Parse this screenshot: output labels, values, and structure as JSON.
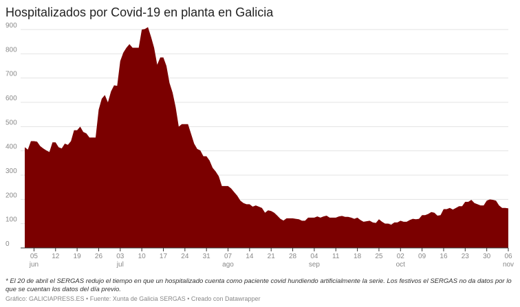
{
  "chart_data": {
    "type": "area",
    "title": "Hospitalizados por Covid-19 en planta en Galicia",
    "footnote": "* El 20 de abril el SERGAS redujo el tiempo en que un hospitalizado cuenta como paciente covid hundiendo artificialmente la serie. Los festivos el SERGAS no da datos por lo que se cuentan los datos del día previo.",
    "source": "Gráfico: GALICIAPRESS.ES • Fuente: Xunta de Galicia SERGAS • Creado con Datawrapper",
    "color": "#7b0000",
    "categories": [
      null,
      null,
      null,
      "05 jun",
      null,
      null,
      null,
      null,
      null,
      null,
      "12",
      null,
      null,
      null,
      null,
      null,
      null,
      "19",
      null,
      null,
      null,
      null,
      null,
      null,
      "26",
      null,
      null,
      null,
      null,
      null,
      null,
      "03 jul",
      null,
      null,
      null,
      null,
      null,
      null,
      "10",
      null,
      null,
      null,
      null,
      null,
      null,
      "17",
      null,
      null,
      null,
      null,
      null,
      null,
      "24",
      null,
      null,
      null,
      null,
      null,
      null,
      "31",
      null,
      null,
      null,
      null,
      null,
      null,
      "07 ago",
      null,
      null,
      null,
      null,
      null,
      null,
      "14",
      null,
      null,
      null,
      null,
      null,
      null,
      "21",
      null,
      null,
      null,
      null,
      null,
      null,
      "28",
      null,
      null,
      null,
      null,
      null,
      null,
      "04 sep",
      null,
      null,
      null,
      null,
      null,
      null,
      "11",
      null,
      null,
      null,
      null,
      null,
      null,
      "18",
      null,
      null,
      null,
      null,
      null,
      null,
      "25",
      null,
      null,
      null,
      null,
      null,
      null,
      "02 oct",
      null,
      null,
      null,
      null,
      null,
      null,
      "09",
      null,
      null,
      null,
      null,
      null,
      null,
      "16",
      null,
      null,
      null,
      null,
      null,
      null,
      "23",
      null,
      null,
      null,
      null,
      null,
      null,
      "30",
      null,
      null,
      null,
      null,
      null,
      null,
      "06 nov"
    ],
    "values": [
      415,
      405,
      440,
      440,
      438,
      420,
      410,
      402,
      395,
      435,
      435,
      415,
      410,
      430,
      425,
      440,
      485,
      485,
      500,
      478,
      472,
      455,
      455,
      455,
      570,
      615,
      630,
      600,
      645,
      670,
      668,
      770,
      805,
      825,
      840,
      825,
      825,
      825,
      900,
      902,
      910,
      870,
      825,
      755,
      785,
      785,
      750,
      680,
      640,
      580,
      500,
      510,
      510,
      510,
      470,
      430,
      408,
      402,
      378,
      378,
      360,
      330,
      315,
      295,
      255,
      255,
      255,
      245,
      230,
      215,
      195,
      185,
      180,
      180,
      170,
      175,
      170,
      165,
      145,
      155,
      152,
      145,
      133,
      120,
      113,
      122,
      122,
      122,
      120,
      118,
      112,
      112,
      125,
      125,
      125,
      130,
      125,
      130,
      133,
      125,
      125,
      125,
      130,
      132,
      128,
      128,
      125,
      120,
      125,
      115,
      108,
      110,
      112,
      105,
      103,
      118,
      108,
      100,
      100,
      96,
      105,
      105,
      112,
      108,
      108,
      115,
      120,
      118,
      120,
      135,
      135,
      140,
      148,
      145,
      133,
      135,
      160,
      160,
      165,
      158,
      165,
      172,
      172,
      190,
      190,
      198,
      185,
      180,
      175,
      175,
      195,
      200,
      198,
      195,
      175,
      165,
      165,
      163
    ],
    "ylim": [
      0,
      900
    ],
    "yticks": [
      0,
      100,
      200,
      300,
      400,
      500,
      600,
      700,
      800,
      900
    ],
    "grid": true
  }
}
